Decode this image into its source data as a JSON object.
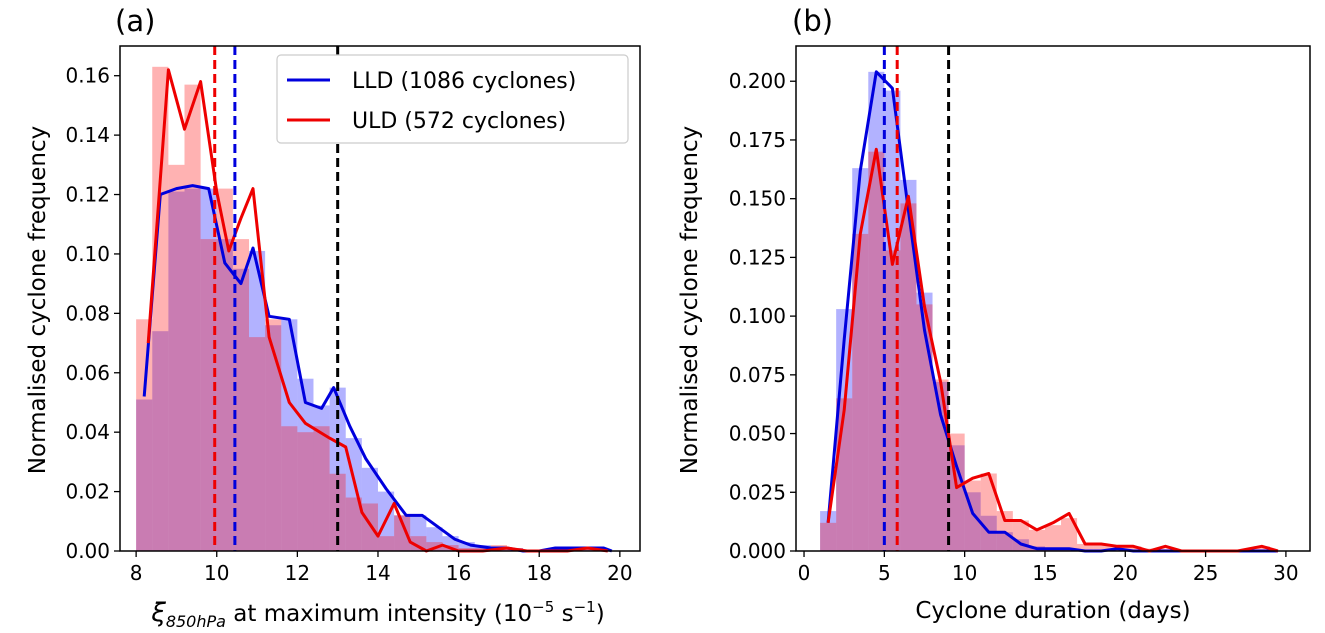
{
  "chart_data": [
    {
      "type": "histogram-line",
      "panel_label": "(a)",
      "xlabel_symbol": "ξ",
      "xlabel_subscript": "850hPa",
      "xlabel_rest": " at maximum intensity (10",
      "xlabel_exp": "−5",
      "xlabel_unit": " s",
      "xlabel_unit_exp": "−1",
      "xlabel_close": ")",
      "ylabel": "Normalised cyclone frequency",
      "xlim": [
        7.6,
        20.5
      ],
      "ylim": [
        0,
        0.17
      ],
      "xticks": [
        8,
        10,
        12,
        14,
        16,
        18,
        20
      ],
      "xtick_labels": [
        "8",
        "10",
        "12",
        "14",
        "16",
        "18",
        "20"
      ],
      "yticks": [
        0,
        0.02,
        0.04,
        0.06,
        0.08,
        0.1,
        0.12,
        0.14,
        0.16
      ],
      "ytick_labels": [
        "0.00",
        "0.02",
        "0.04",
        "0.06",
        "0.08",
        "0.10",
        "0.12",
        "0.14",
        "0.16"
      ],
      "legend_position": "top-right",
      "series": [
        {
          "name": "LLD (1086 cyclones)",
          "color": "#0000dd",
          "fill": "rgba(0,0,255,0.30)",
          "bin_width": 0.4,
          "bins": [
            [
              8.0,
              0.051
            ],
            [
              8.4,
              0.074
            ],
            [
              8.8,
              0.121
            ],
            [
              9.2,
              0.122
            ],
            [
              9.6,
              0.122
            ],
            [
              10.0,
              0.105
            ],
            [
              10.4,
              0.095
            ],
            [
              10.8,
              0.101
            ],
            [
              11.2,
              0.076
            ],
            [
              11.6,
              0.078
            ],
            [
              12.0,
              0.058
            ],
            [
              12.4,
              0.049
            ],
            [
              12.8,
              0.055
            ],
            [
              13.2,
              0.038
            ],
            [
              13.6,
              0.028
            ],
            [
              14.0,
              0.02
            ],
            [
              14.4,
              0.012
            ],
            [
              14.8,
              0.012
            ],
            [
              15.2,
              0.008
            ],
            [
              15.6,
              0.005
            ],
            [
              16.0,
              0.003
            ],
            [
              16.4,
              0.002
            ],
            [
              16.8,
              0.001
            ],
            [
              17.2,
              0.001
            ],
            [
              17.6,
              0.0
            ],
            [
              18.0,
              0.0
            ],
            [
              18.4,
              0.001
            ],
            [
              18.8,
              0.001
            ],
            [
              19.2,
              0.001
            ],
            [
              19.6,
              0.0
            ]
          ],
          "line": [
            [
              8.2,
              0.052
            ],
            [
              8.6,
              0.12
            ],
            [
              9.0,
              0.122
            ],
            [
              9.4,
              0.123
            ],
            [
              9.8,
              0.122
            ],
            [
              10.2,
              0.097
            ],
            [
              10.6,
              0.09
            ],
            [
              10.9,
              0.102
            ],
            [
              11.3,
              0.079
            ],
            [
              11.8,
              0.078
            ],
            [
              12.2,
              0.05
            ],
            [
              12.6,
              0.048
            ],
            [
              12.9,
              0.055
            ],
            [
              13.3,
              0.042
            ],
            [
              13.7,
              0.031
            ],
            [
              14.2,
              0.021
            ],
            [
              14.7,
              0.012
            ],
            [
              15.1,
              0.012
            ],
            [
              15.5,
              0.008
            ],
            [
              15.9,
              0.004
            ],
            [
              16.3,
              0.002
            ],
            [
              16.8,
              0.001
            ],
            [
              17.2,
              0.001
            ],
            [
              17.6,
              0.0
            ],
            [
              18.0,
              0.0
            ],
            [
              18.4,
              0.001
            ],
            [
              19.0,
              0.001
            ],
            [
              19.6,
              0.001
            ],
            [
              19.8,
              0.0
            ]
          ]
        },
        {
          "name": "ULD (572 cyclones)",
          "color": "#ee0000",
          "fill": "rgba(255,0,0,0.30)",
          "bin_width": 0.4,
          "bins": [
            [
              8.0,
              0.078
            ],
            [
              8.4,
              0.163
            ],
            [
              8.8,
              0.13
            ],
            [
              9.2,
              0.157
            ],
            [
              9.6,
              0.105
            ],
            [
              10.0,
              0.122
            ],
            [
              10.4,
              0.105
            ],
            [
              10.8,
              0.072
            ],
            [
              11.2,
              0.078
            ],
            [
              11.6,
              0.042
            ],
            [
              12.0,
              0.04
            ],
            [
              12.4,
              0.042
            ],
            [
              12.8,
              0.026
            ],
            [
              13.2,
              0.018
            ],
            [
              13.6,
              0.016
            ],
            [
              14.0,
              0.005
            ],
            [
              14.4,
              0.012
            ],
            [
              14.8,
              0.005
            ],
            [
              15.2,
              0.003
            ],
            [
              15.6,
              0.002
            ],
            [
              16.0,
              0.001
            ],
            [
              16.4,
              0.001
            ],
            [
              16.8,
              0.002
            ],
            [
              17.2,
              0.001
            ],
            [
              17.6,
              0.0
            ],
            [
              18.0,
              0.0
            ],
            [
              18.4,
              0.0
            ],
            [
              18.8,
              0.001
            ],
            [
              19.2,
              0.001
            ],
            [
              19.6,
              0.0
            ]
          ],
          "line": [
            [
              8.3,
              0.07
            ],
            [
              8.8,
              0.162
            ],
            [
              9.2,
              0.142
            ],
            [
              9.6,
              0.158
            ],
            [
              10.0,
              0.121
            ],
            [
              10.3,
              0.101
            ],
            [
              10.6,
              0.112
            ],
            [
              10.9,
              0.122
            ],
            [
              11.3,
              0.072
            ],
            [
              11.8,
              0.05
            ],
            [
              12.2,
              0.043
            ],
            [
              12.8,
              0.038
            ],
            [
              13.2,
              0.035
            ],
            [
              13.6,
              0.013
            ],
            [
              14.0,
              0.005
            ],
            [
              14.4,
              0.016
            ],
            [
              14.8,
              0.003
            ],
            [
              15.2,
              0.0
            ],
            [
              15.6,
              0.002
            ],
            [
              16.0,
              0.0
            ],
            [
              16.6,
              0.0
            ],
            [
              17.2,
              0.001
            ],
            [
              17.7,
              0.0
            ],
            [
              18.2,
              0.0
            ],
            [
              18.7,
              0.0
            ],
            [
              19.2,
              0.001
            ],
            [
              19.7,
              0.0
            ]
          ]
        }
      ],
      "vlines": [
        {
          "x": 9.95,
          "color": "#ee0000"
        },
        {
          "x": 10.45,
          "color": "#0000dd"
        },
        {
          "x": 13.0,
          "color": "#000000"
        }
      ]
    },
    {
      "type": "histogram-line",
      "panel_label": "(b)",
      "xlabel": "Cyclone duration (days)",
      "ylabel": "Normalised cyclone frequency",
      "xlim": [
        -0.5,
        31.5
      ],
      "ylim": [
        0,
        0.215
      ],
      "xticks": [
        0,
        5,
        10,
        15,
        20,
        25,
        30
      ],
      "xtick_labels": [
        "0",
        "5",
        "10",
        "15",
        "20",
        "25",
        "30"
      ],
      "yticks": [
        0,
        0.025,
        0.05,
        0.075,
        0.1,
        0.125,
        0.15,
        0.175,
        0.2
      ],
      "ytick_labels": [
        "0.000",
        "0.025",
        "0.050",
        "0.075",
        "0.100",
        "0.125",
        "0.150",
        "0.175",
        "0.200"
      ],
      "series": [
        {
          "name": "LLD",
          "color": "#0000dd",
          "fill": "rgba(0,0,255,0.30)",
          "bin_width": 1,
          "bins": [
            [
              1,
              0.017
            ],
            [
              2,
              0.103
            ],
            [
              3,
              0.163
            ],
            [
              4,
              0.204
            ],
            [
              5,
              0.196
            ],
            [
              6,
              0.158
            ],
            [
              7,
              0.11
            ],
            [
              8,
              0.072
            ],
            [
              9,
              0.045
            ],
            [
              10,
              0.025
            ],
            [
              11,
              0.015
            ],
            [
              12,
              0.008
            ],
            [
              13,
              0.005
            ],
            [
              14,
              0.002
            ],
            [
              15,
              0.001
            ],
            [
              16,
              0.001
            ],
            [
              17,
              0.0005
            ],
            [
              18,
              0.0
            ],
            [
              19,
              0.001
            ],
            [
              20,
              0.0005
            ],
            [
              21,
              0.0
            ],
            [
              22,
              0.0
            ],
            [
              23,
              0.0
            ],
            [
              24,
              0.0
            ],
            [
              25,
              0.0
            ],
            [
              26,
              0.0
            ],
            [
              27,
              0.0
            ],
            [
              28,
              0.0
            ],
            [
              29,
              0.0
            ]
          ],
          "line": [
            [
              1.5,
              0.012
            ],
            [
              2.5,
              0.09
            ],
            [
              3.5,
              0.162
            ],
            [
              4.5,
              0.204
            ],
            [
              5.5,
              0.197
            ],
            [
              6.5,
              0.145
            ],
            [
              7.5,
              0.094
            ],
            [
              8.5,
              0.058
            ],
            [
              9.5,
              0.036
            ],
            [
              10.5,
              0.016
            ],
            [
              11.5,
              0.008
            ],
            [
              12.5,
              0.008
            ],
            [
              13.5,
              0.003
            ],
            [
              14.5,
              0.001
            ],
            [
              15.5,
              0.001
            ],
            [
              16.5,
              0.001
            ],
            [
              17.5,
              0.0
            ],
            [
              18.5,
              0.0
            ],
            [
              19.5,
              0.001
            ],
            [
              20.5,
              0.0
            ],
            [
              21.5,
              0.0
            ],
            [
              22.5,
              0.0
            ],
            [
              24.0,
              0.0
            ],
            [
              26.0,
              0.0
            ],
            [
              28.0,
              0.0
            ],
            [
              29.5,
              0.0
            ]
          ]
        },
        {
          "name": "ULD",
          "color": "#ee0000",
          "fill": "rgba(255,0,0,0.30)",
          "bin_width": 1,
          "bins": [
            [
              1,
              0.012
            ],
            [
              2,
              0.065
            ],
            [
              3,
              0.135
            ],
            [
              4,
              0.17
            ],
            [
              5,
              0.128
            ],
            [
              6,
              0.148
            ],
            [
              7,
              0.105
            ],
            [
              8,
              0.073
            ],
            [
              9,
              0.05
            ],
            [
              10,
              0.03
            ],
            [
              11,
              0.033
            ],
            [
              12,
              0.017
            ],
            [
              13,
              0.013
            ],
            [
              14,
              0.009
            ],
            [
              15,
              0.011
            ],
            [
              16,
              0.014
            ],
            [
              17,
              0.003
            ],
            [
              18,
              0.003
            ],
            [
              19,
              0.002
            ],
            [
              20,
              0.002
            ],
            [
              21,
              0.001
            ],
            [
              22,
              0.001
            ],
            [
              23,
              0.0
            ],
            [
              24,
              0.0
            ],
            [
              25,
              0.0
            ],
            [
              26,
              0.0
            ],
            [
              27,
              0.0
            ],
            [
              28,
              0.002
            ],
            [
              29,
              0.0
            ]
          ],
          "line": [
            [
              1.5,
              0.012
            ],
            [
              2.5,
              0.06
            ],
            [
              3.5,
              0.135
            ],
            [
              4.5,
              0.171
            ],
            [
              5.5,
              0.122
            ],
            [
              6.5,
              0.151
            ],
            [
              7.5,
              0.104
            ],
            [
              8.5,
              0.072
            ],
            [
              9.5,
              0.027
            ],
            [
              10.5,
              0.031
            ],
            [
              11.5,
              0.033
            ],
            [
              12.5,
              0.013
            ],
            [
              13.5,
              0.013
            ],
            [
              14.5,
              0.009
            ],
            [
              15.5,
              0.012
            ],
            [
              16.5,
              0.016
            ],
            [
              17.5,
              0.003
            ],
            [
              18.5,
              0.003
            ],
            [
              19.5,
              0.002
            ],
            [
              20.5,
              0.002
            ],
            [
              21.5,
              0.0
            ],
            [
              22.5,
              0.002
            ],
            [
              23.5,
              0.0
            ],
            [
              25.0,
              0.0
            ],
            [
              27.0,
              0.0
            ],
            [
              28.5,
              0.002
            ],
            [
              29.5,
              0.0
            ]
          ]
        }
      ],
      "vlines": [
        {
          "x": 5.0,
          "color": "#0000dd"
        },
        {
          "x": 5.8,
          "color": "#ee0000"
        },
        {
          "x": 9.0,
          "color": "#000000"
        }
      ]
    }
  ]
}
